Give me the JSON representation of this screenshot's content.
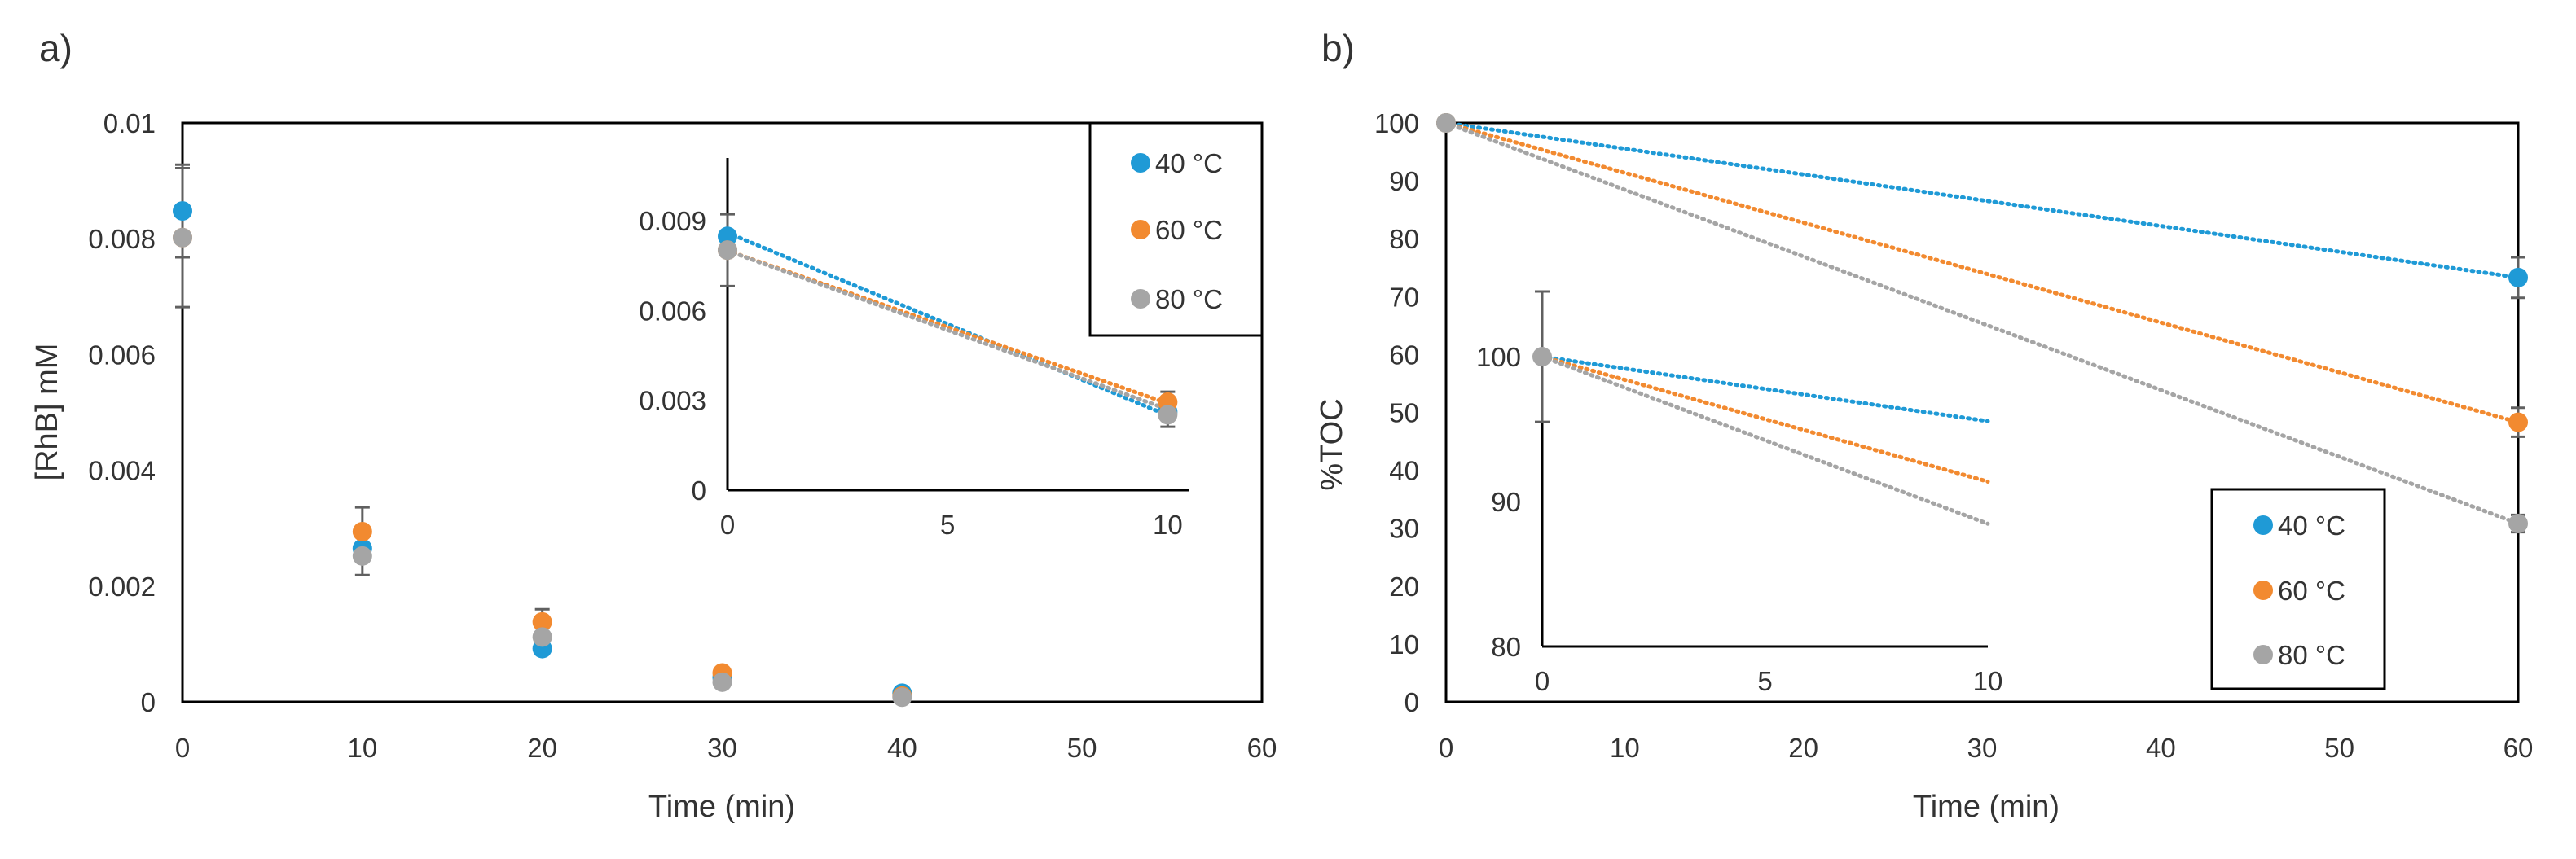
{
  "chart_data": [
    {
      "panel_label": "a)",
      "type": "scatter",
      "title": "",
      "xlabel": "Time (min)",
      "ylabel": "[RhB] mM",
      "xlim": [
        0,
        60
      ],
      "ylim": [
        0,
        0.01
      ],
      "xticks": [
        0,
        10,
        20,
        30,
        40,
        50,
        60
      ],
      "yticks": [
        0,
        0.002,
        0.004,
        0.006,
        0.008,
        0.01
      ],
      "ytick_labels": [
        "0",
        "0.002",
        "0.004",
        "0.006",
        "0.008",
        "0.01"
      ],
      "legend_position": "top-right",
      "series": [
        {
          "name": "40 °C",
          "color": "#1f9ad6",
          "x": [
            0,
            10,
            20,
            30,
            40
          ],
          "y": [
            0.00848,
            0.00265,
            0.00092,
            0.00042,
            0.00015
          ],
          "err": [
            0.0008,
            0.0,
            0.0,
            0.0,
            0.0
          ]
        },
        {
          "name": "60 °C",
          "color": "#f28a30",
          "x": [
            0,
            10,
            20,
            30,
            40
          ],
          "y": [
            0.00802,
            0.00294,
            0.00138,
            0.0005,
            0.0001
          ],
          "err": [
            0.0,
            0.00042,
            0.00022,
            0.0,
            0.0
          ]
        },
        {
          "name": "80 °C",
          "color": "#a5a5a5",
          "x": [
            0,
            10,
            20,
            30,
            40
          ],
          "y": [
            0.00802,
            0.00252,
            0.00112,
            0.00034,
            8e-05
          ],
          "err": [
            0.0012,
            0.00033,
            0.0,
            0.0,
            0.0
          ]
        }
      ],
      "inset": {
        "xlim": [
          0,
          10
        ],
        "ylim": [
          0,
          0.0111
        ],
        "xticks": [
          0,
          5,
          10
        ],
        "yticks": [
          0,
          0.003,
          0.006,
          0.009
        ],
        "ytick_labels": [
          "0",
          "0.003",
          "0.006",
          "0.009"
        ],
        "series": [
          {
            "name": "40 °C",
            "color": "#1f9ad6",
            "x": [
              0,
              10
            ],
            "y": [
              0.00848,
              0.00262
            ],
            "err": [
              0.0,
              0.0
            ]
          },
          {
            "name": "60 °C",
            "color": "#f28a30",
            "x": [
              0,
              10
            ],
            "y": [
              0.00802,
              0.00294
            ],
            "err": [
              0.0,
              0.00035
            ]
          },
          {
            "name": "80 °C",
            "color": "#a5a5a5",
            "x": [
              0,
              10
            ],
            "y": [
              0.00802,
              0.00252
            ],
            "err": [
              0.0012,
              0.0004
            ]
          }
        ],
        "trendlines": [
          {
            "color": "#1f9ad6",
            "x": [
              0,
              10
            ],
            "y": [
              0.0086,
              0.0025
            ]
          },
          {
            "color": "#f28a30",
            "x": [
              0,
              10
            ],
            "y": [
              0.008,
              0.0029
            ]
          },
          {
            "color": "#a5a5a5",
            "x": [
              0,
              10
            ],
            "y": [
              0.008,
              0.0027
            ]
          }
        ]
      }
    },
    {
      "panel_label": "b)",
      "type": "scatter",
      "title": "",
      "xlabel": "Time (min)",
      "ylabel": "%TOC",
      "xlim": [
        0,
        60
      ],
      "ylim": [
        0,
        100
      ],
      "xticks": [
        0,
        10,
        20,
        30,
        40,
        50,
        60
      ],
      "yticks": [
        0,
        10,
        20,
        30,
        40,
        50,
        60,
        70,
        80,
        90,
        100
      ],
      "ytick_labels": [
        "0",
        "10",
        "20",
        "30",
        "40",
        "50",
        "60",
        "70",
        "80",
        "90",
        "100"
      ],
      "legend_position": "bottom-right",
      "series": [
        {
          "name": "40 °C",
          "color": "#1f9ad6",
          "x": [
            0,
            60
          ],
          "y": [
            100,
            73.3
          ],
          "err": [
            0,
            3.5
          ]
        },
        {
          "name": "60 °C",
          "color": "#f28a30",
          "x": [
            0,
            60
          ],
          "y": [
            100,
            48.3
          ],
          "err": [
            0,
            2.5
          ]
        },
        {
          "name": "80 °C",
          "color": "#a5a5a5",
          "x": [
            0,
            60
          ],
          "y": [
            100,
            30.8
          ],
          "err": [
            0,
            1.5
          ]
        }
      ],
      "trendlines": [
        {
          "color": "#1f9ad6",
          "x": [
            0,
            60
          ],
          "y": [
            100,
            73.3
          ]
        },
        {
          "color": "#f28a30",
          "x": [
            0,
            60
          ],
          "y": [
            100,
            48.3
          ]
        },
        {
          "color": "#a5a5a5",
          "x": [
            0,
            60
          ],
          "y": [
            100,
            30.8
          ]
        }
      ],
      "inset": {
        "xlim": [
          0,
          10
        ],
        "ylim": [
          80,
          102.7
        ],
        "xticks": [
          0,
          5,
          10
        ],
        "yticks": [
          80,
          90,
          100
        ],
        "ytick_labels": [
          "80",
          "90",
          "100"
        ],
        "series": [
          {
            "name": "80 °C",
            "color": "#a5a5a5",
            "x": [
              0
            ],
            "y": [
              100
            ],
            "err": [
              4.5
            ]
          }
        ],
        "trendlines": [
          {
            "color": "#1f9ad6",
            "x": [
              0,
              10
            ],
            "y": [
              100,
              95.55
            ]
          },
          {
            "color": "#f28a30",
            "x": [
              0,
              10
            ],
            "y": [
              100,
              91.38
            ]
          },
          {
            "color": "#a5a5a5",
            "x": [
              0,
              10
            ],
            "y": [
              100,
              88.47
            ]
          }
        ]
      }
    }
  ]
}
